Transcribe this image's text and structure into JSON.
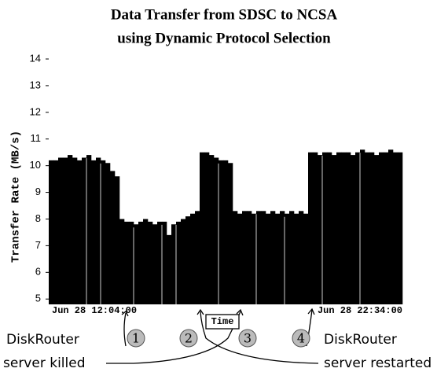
{
  "chart_data": {
    "type": "bar",
    "title": [
      "Data Transfer from SDSC to NCSA",
      "using Dynamic Protocol Selection"
    ],
    "y_label": "Transfer Rate (MB/s)",
    "color": "#000000",
    "ylim": [
      4.8,
      14
    ],
    "yticks": [
      5,
      6,
      7,
      8,
      9,
      10,
      11,
      12,
      13,
      14
    ],
    "categories": [
      "Jun 28 12:04:00",
      null,
      null,
      null,
      null,
      null,
      null,
      null,
      null,
      null,
      null,
      null,
      null,
      null,
      null,
      null,
      null,
      null,
      null,
      null,
      null,
      null,
      null,
      null,
      null,
      null,
      null,
      null,
      null,
      null,
      null,
      null,
      null,
      null,
      null,
      null,
      null,
      null,
      null,
      null,
      null,
      null,
      null,
      null,
      null,
      null,
      null,
      null,
      null,
      null,
      null,
      null,
      null,
      null,
      null,
      null,
      null,
      null,
      null,
      null,
      null,
      null,
      null,
      null,
      null,
      null,
      null,
      null,
      null,
      null,
      null,
      null,
      null,
      null,
      "Jun 28 22:34:00"
    ],
    "values": [
      10.2,
      10.2,
      10.3,
      10.3,
      10.4,
      10.3,
      10.2,
      10.3,
      10.4,
      10.2,
      10.3,
      10.2,
      10.1,
      9.8,
      9.6,
      8.0,
      7.9,
      7.9,
      7.8,
      7.9,
      8.0,
      7.9,
      7.8,
      7.9,
      7.9,
      7.4,
      7.8,
      7.9,
      8.0,
      8.1,
      8.2,
      8.3,
      10.5,
      10.5,
      10.4,
      10.3,
      10.2,
      10.2,
      10.1,
      8.3,
      8.2,
      8.3,
      8.3,
      8.2,
      8.3,
      8.3,
      8.2,
      8.3,
      8.2,
      8.3,
      8.2,
      8.3,
      8.2,
      8.3,
      8.2,
      10.5,
      10.5,
      10.4,
      10.5,
      10.5,
      10.4,
      10.5,
      10.5,
      10.5,
      10.4,
      10.5,
      10.6,
      10.5,
      10.5,
      10.4,
      10.5,
      10.5,
      10.6,
      10.5,
      10.5
    ],
    "annotations": [
      "Time",
      "1",
      "2",
      "3",
      "4",
      "DiskRouter",
      "server killed",
      "DiskRouter",
      "server restarted"
    ]
  }
}
